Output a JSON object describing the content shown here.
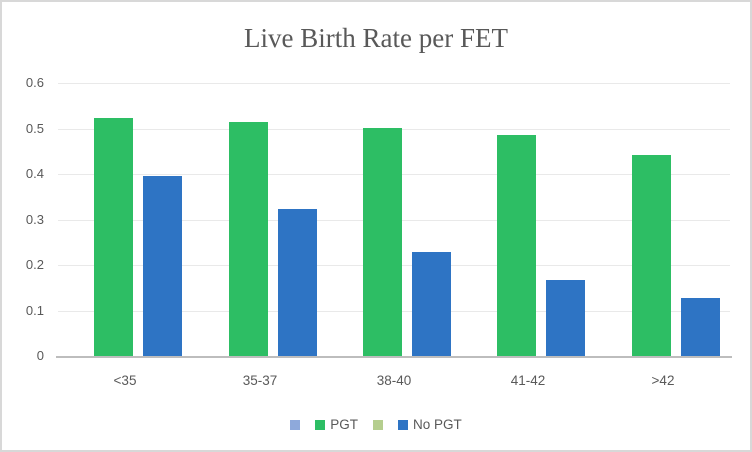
{
  "chart_data": {
    "type": "bar",
    "title": "Live Birth Rate per FET",
    "categories": [
      "<35",
      "35-37",
      "38-40",
      "41-42",
      ">42"
    ],
    "series": [
      {
        "name": "",
        "color": "#8ea9db",
        "values": []
      },
      {
        "name": "PGT",
        "color": "#2dbe64",
        "values": [
          0.523,
          0.514,
          0.5,
          0.486,
          0.442
        ]
      },
      {
        "name": "",
        "color": "#b5ce8e",
        "values": []
      },
      {
        "name": "No PGT",
        "color": "#2e74c4",
        "values": [
          0.396,
          0.323,
          0.229,
          0.168,
          0.127
        ]
      }
    ],
    "xlabel": "",
    "ylabel": "",
    "y_ticks": [
      "0.6",
      "0.5",
      "0.4",
      "0.3",
      "0.2",
      "0.1",
      "0"
    ],
    "ylim": [
      0,
      0.6
    ],
    "grid": true,
    "legend_position": "bottom"
  },
  "style": {
    "title_color": "#595959",
    "label_color": "#595959",
    "gridline_color": "#e9e9e9",
    "axis_line_color": "#bdbdbd",
    "frame_border_color": "#d8d8d8",
    "background": "#ffffff"
  }
}
